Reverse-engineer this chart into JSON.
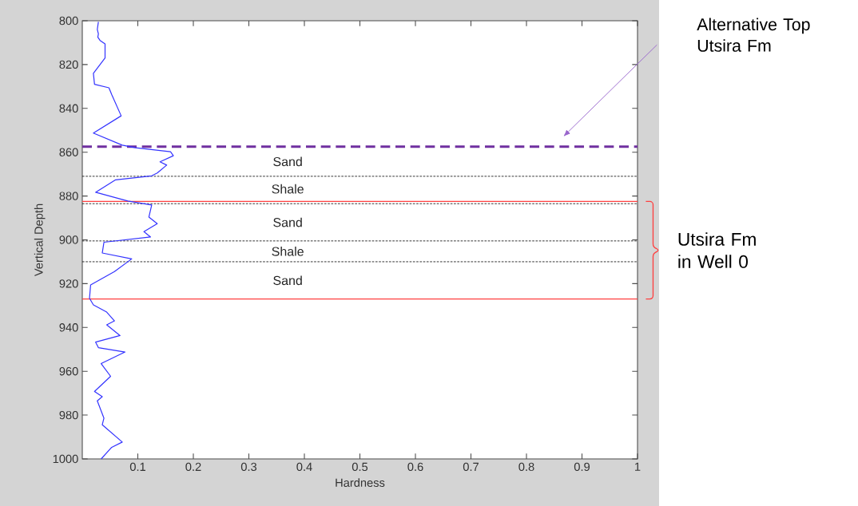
{
  "chart_data": {
    "type": "line",
    "xlabel": "Hardness",
    "ylabel": "Vertical Depth",
    "xlim": [
      0,
      1
    ],
    "xticks": [
      0.1,
      0.2,
      0.3,
      0.4,
      0.5,
      0.6,
      0.7,
      0.8,
      0.9,
      1
    ],
    "ylim": [
      1000,
      800
    ],
    "yticks": [
      800,
      820,
      840,
      860,
      880,
      900,
      920,
      940,
      960,
      980,
      1000
    ],
    "grid": false,
    "series": [
      {
        "color": "#3333ff",
        "x": [
          0.029,
          0.027,
          0.029,
          0.028,
          0.032,
          0.041,
          0.041,
          0.02,
          0.022,
          0.048,
          0.053,
          0.07,
          0.02,
          0.072,
          0.096,
          0.159,
          0.164,
          0.14,
          0.152,
          0.135,
          0.125,
          0.06,
          0.024,
          0.082,
          0.125,
          0.12,
          0.135,
          0.111,
          0.123,
          0.039,
          0.036,
          0.089,
          0.058,
          0.015,
          0.013,
          0.02,
          0.044,
          0.058,
          0.044,
          0.068,
          0.024,
          0.029,
          0.077,
          0.034,
          0.051,
          0.022,
          0.036,
          0.027,
          0.039,
          0.036,
          0.072,
          0.053,
          0.034
        ],
        "values": [
          800.5,
          804,
          806,
          807.5,
          809,
          810.6,
          817,
          824,
          829,
          830.6,
          833.7,
          843.4,
          851.3,
          856.8,
          858,
          859.8,
          861.6,
          864.4,
          865.9,
          869.5,
          870.8,
          872.6,
          878.3,
          882.3,
          884.1,
          889.6,
          892.6,
          896.3,
          898.7,
          901.1,
          906,
          908.7,
          914.5,
          920.6,
          926.7,
          929.7,
          933,
          937,
          938.8,
          943.7,
          946.7,
          949.2,
          951.2,
          956.5,
          962.3,
          969.2,
          971.6,
          973.5,
          981.4,
          984.4,
          992.3,
          994.7,
          1000
        ]
      }
    ],
    "ref_lines": [
      {
        "axis": "y",
        "value": 857.5,
        "color": "#7030a0",
        "line_style": "dashed"
      },
      {
        "axis": "y",
        "value": 882.5,
        "color": "#ff4040",
        "line_style": "solid"
      },
      {
        "axis": "y",
        "value": 927,
        "color": "#ff4040",
        "line_style": "solid"
      },
      {
        "axis": "y",
        "value": 871,
        "color": "#000000",
        "line_style": "dotted"
      },
      {
        "axis": "y",
        "value": 883.5,
        "color": "#000000",
        "line_style": "dotted"
      },
      {
        "axis": "y",
        "value": 900.5,
        "color": "#000000",
        "line_style": "dotted"
      },
      {
        "axis": "y",
        "value": 910,
        "color": "#000000",
        "line_style": "dotted"
      }
    ],
    "annotations": [
      "Sand",
      "Shale",
      "Sand",
      "Shale",
      "Sand",
      "Alternative Top Utsira Fm",
      "Utsira Fm in Well 0"
    ]
  }
}
